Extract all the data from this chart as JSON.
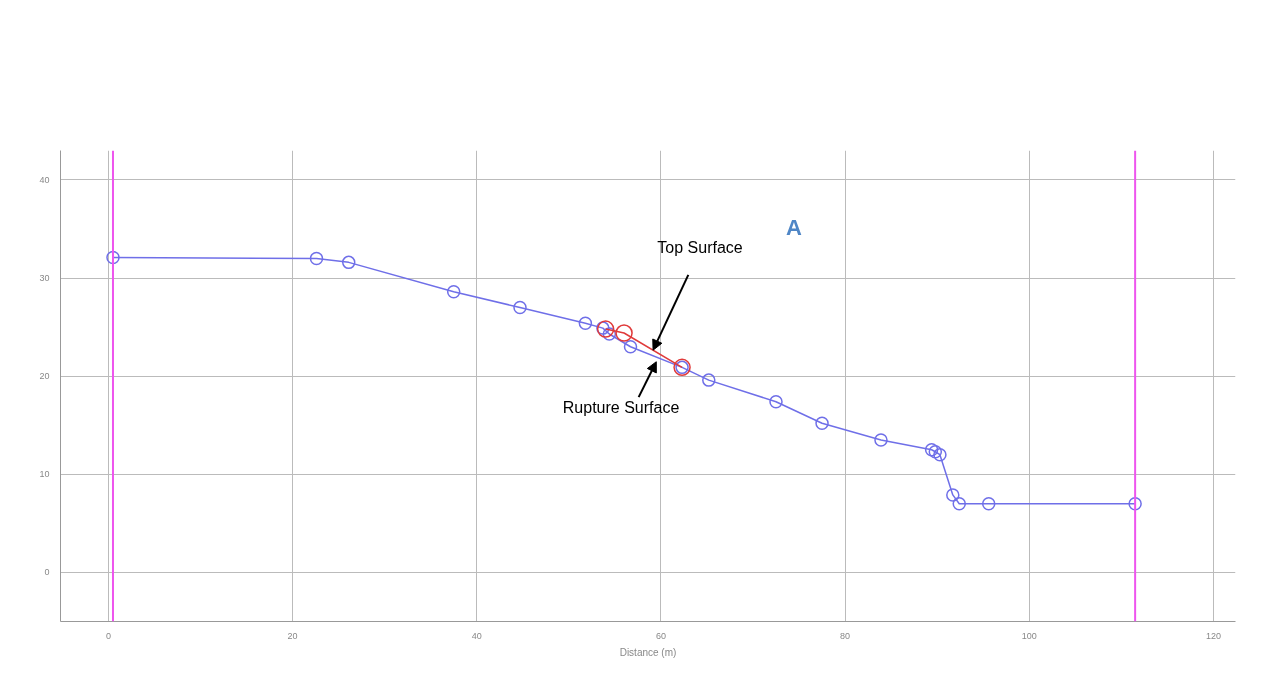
{
  "chart_data": {
    "type": "line",
    "xlabel": "Distance (m)",
    "annotations": [
      "A"
    ],
    "marker": "circle",
    "grid": true,
    "xlim": [
      -5.2,
      122.4
    ],
    "ylim": [
      -5,
      43
    ],
    "xticks": [
      0,
      20,
      40,
      60,
      80,
      100,
      120
    ],
    "yticks": [
      0,
      10,
      20,
      30,
      40
    ],
    "ref_lines": [
      {
        "axis": "x",
        "value": 0.5,
        "color": "#ee55ee"
      },
      {
        "axis": "x",
        "value": 111.5,
        "color": "#ee55ee"
      }
    ],
    "series": [
      {
        "name": "Rupture Surface",
        "color": "#6f6fe8",
        "x": [
          0.5,
          22.6,
          26.1,
          37.5,
          44.7,
          51.8,
          53.7,
          54.4,
          56.7,
          62.3,
          65.2,
          72.5,
          77.5,
          83.9,
          89.4,
          89.8,
          90.3,
          91.7,
          92.4,
          95.6,
          111.5
        ],
        "values": [
          32.1,
          32.0,
          31.6,
          28.6,
          27.0,
          25.4,
          24.9,
          24.3,
          23.0,
          20.9,
          19.6,
          17.4,
          15.2,
          13.5,
          12.5,
          12.3,
          12.0,
          7.9,
          7.0,
          7.0,
          7.0
        ]
      },
      {
        "name": "Top Surface",
        "color": "#e03a3a",
        "x": [
          54.0,
          56.0,
          62.3
        ],
        "values": [
          24.8,
          24.4,
          20.9
        ]
      }
    ]
  }
}
